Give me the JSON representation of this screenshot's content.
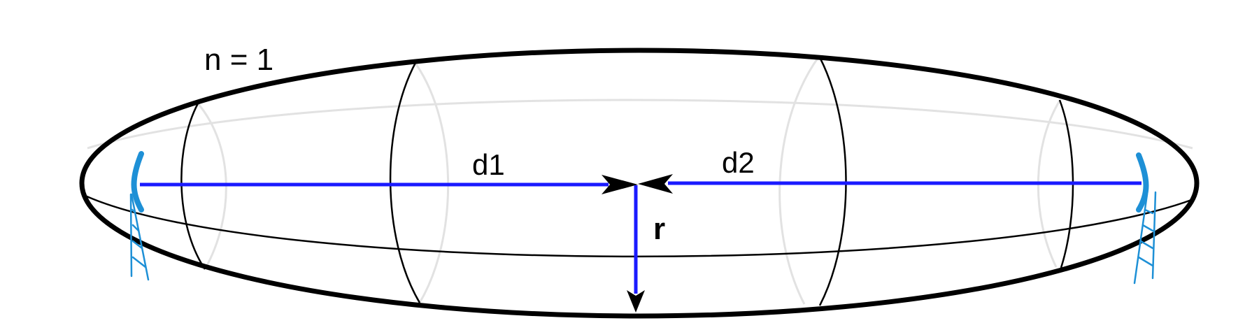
{
  "labels": {
    "order": "n = 1",
    "distance_1": "d1",
    "distance_2": "d2",
    "radius": "r"
  },
  "colors": {
    "outline": "#000000",
    "hidden_edge": "#e2e2e2",
    "path": "#1a1aff",
    "antenna": "#1e90d6",
    "background": "#ffffff"
  },
  "icons": {
    "left_antenna": "antenna-tower-icon",
    "right_antenna": "antenna-tower-icon"
  }
}
